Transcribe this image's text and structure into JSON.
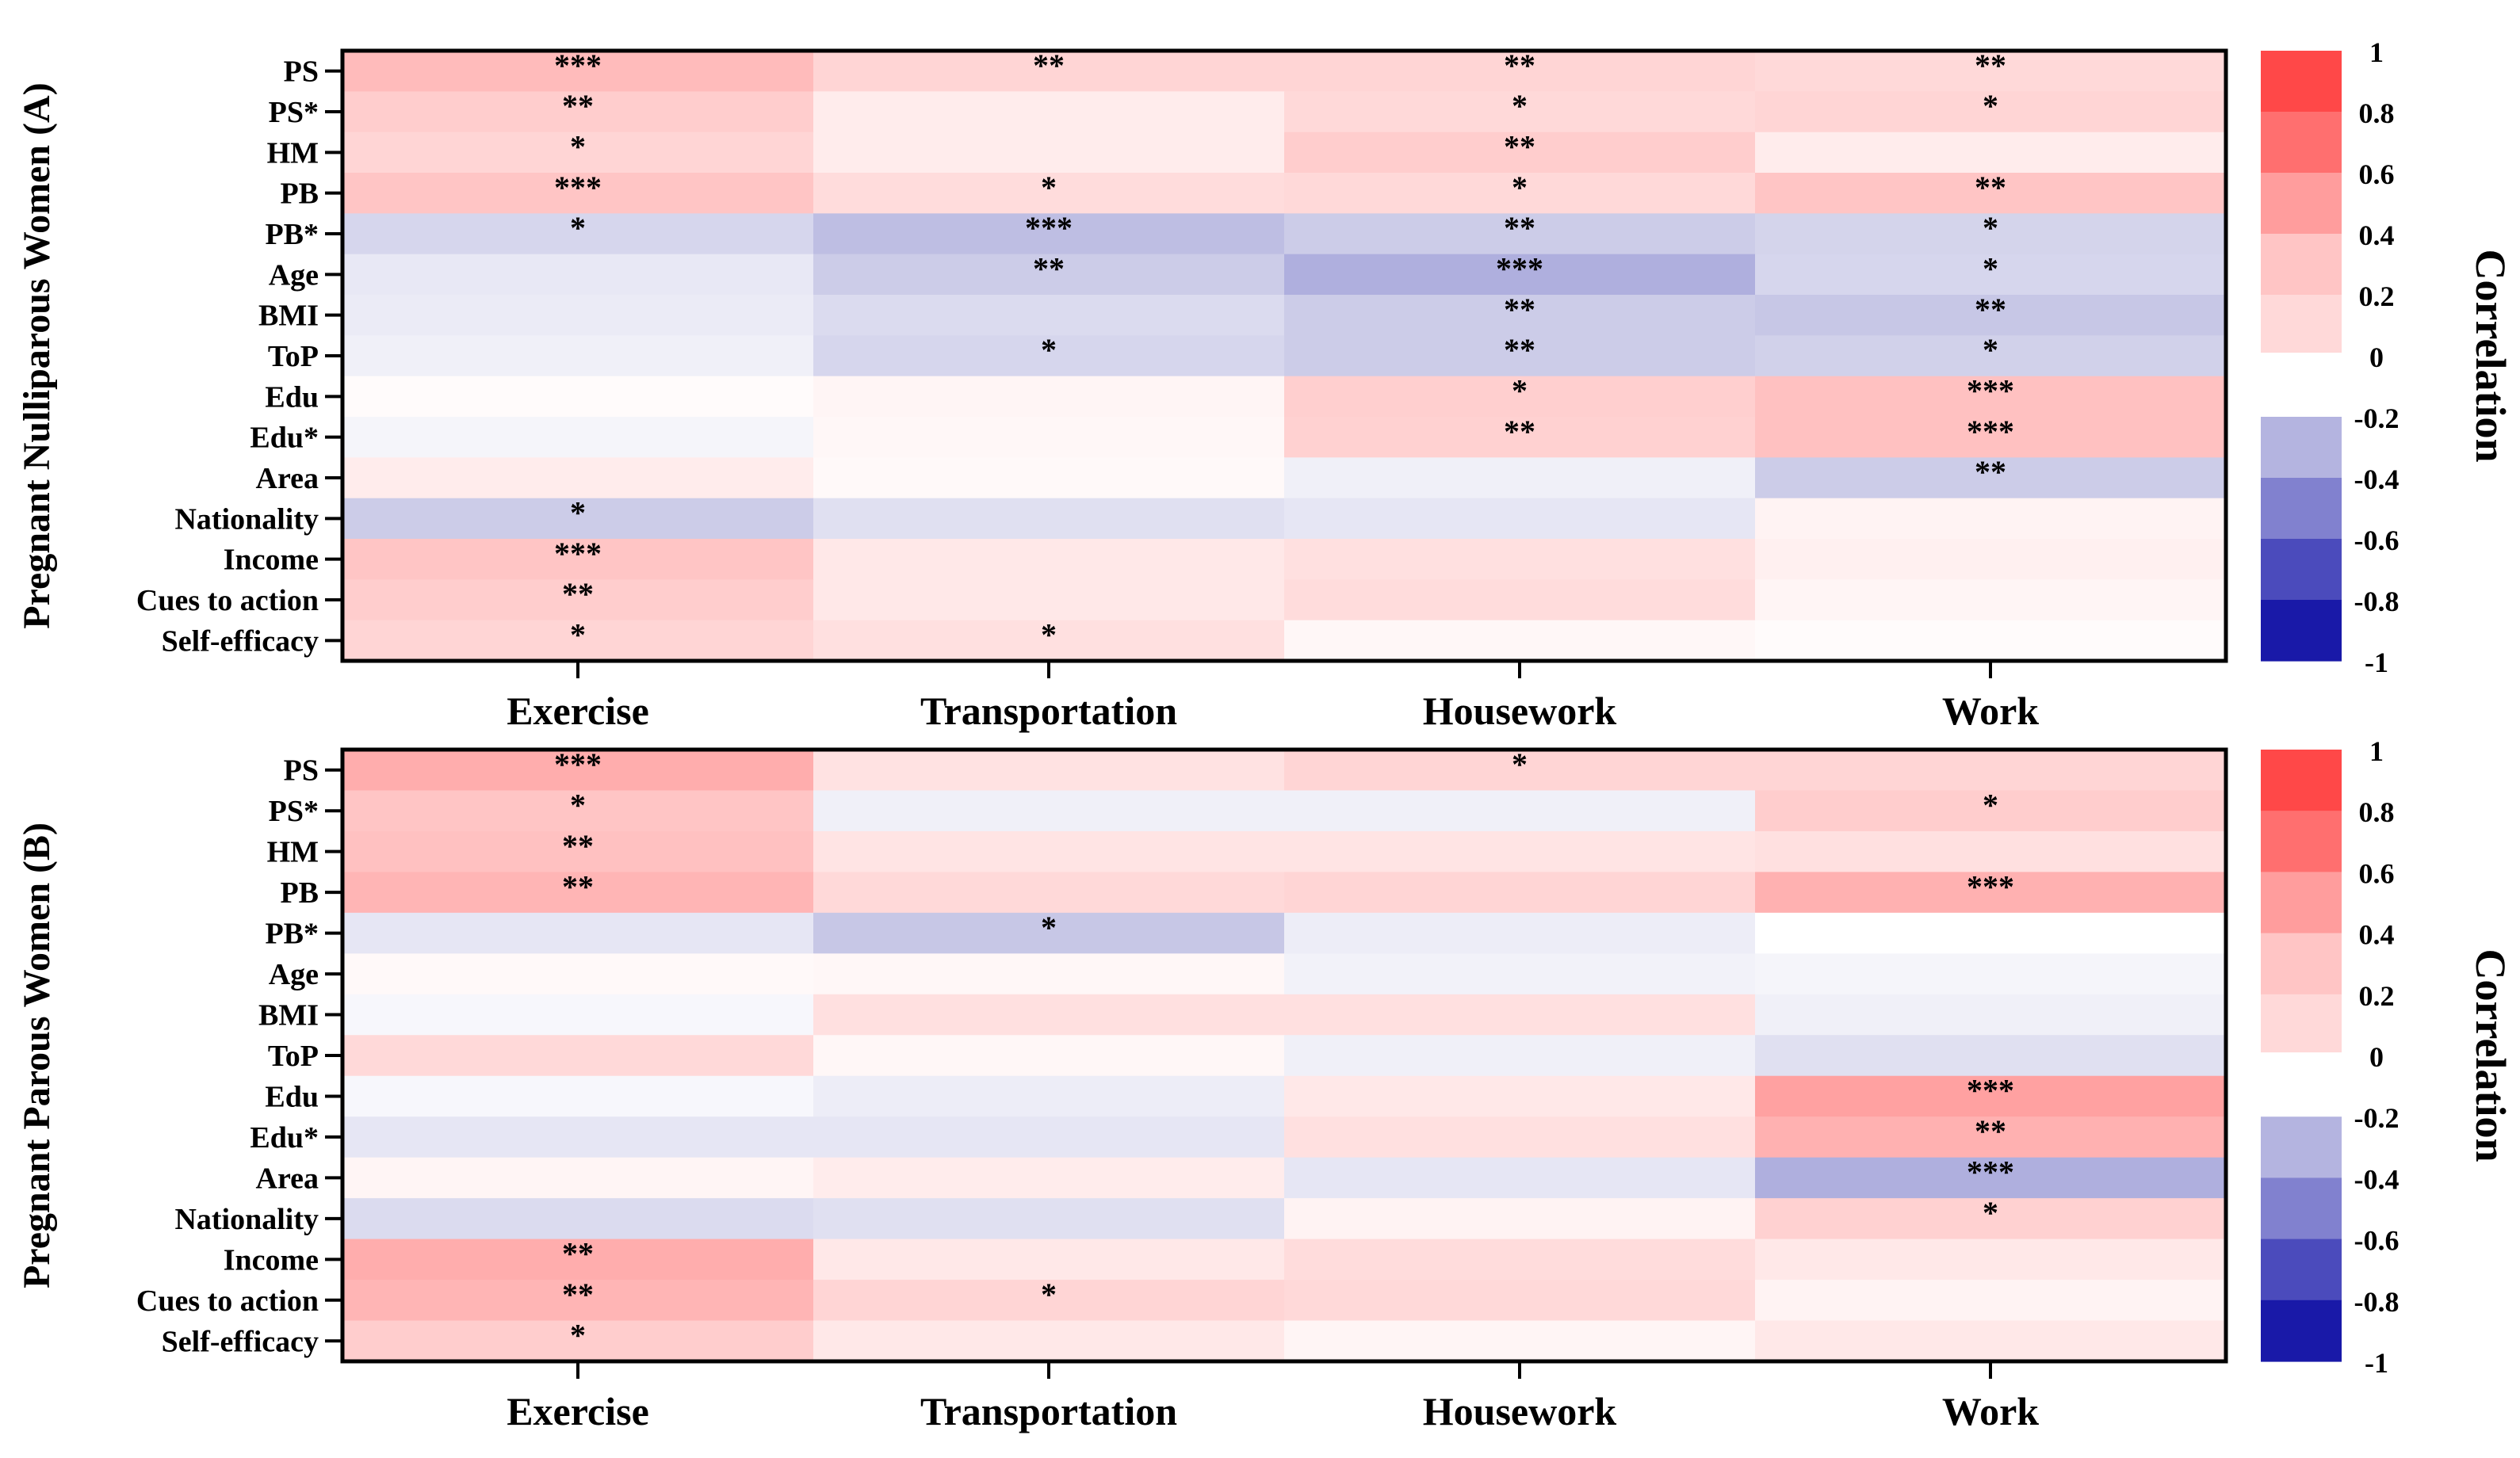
{
  "chart_data": [
    {
      "type": "heatmap",
      "title": "Pregnant Nulliparous Women (A)",
      "rows": [
        "PS",
        "PS*",
        "HM",
        "PB",
        "PB*",
        "Age",
        "BMI",
        "ToP",
        "Edu",
        "Edu*",
        "Area",
        "Nationality",
        "Income",
        "Cues to action",
        "Self-efficacy"
      ],
      "columns": [
        "Exercise",
        "Transportation",
        "Housework",
        "Work"
      ],
      "values": [
        [
          0.35,
          0.22,
          0.22,
          0.2
        ],
        [
          0.26,
          0.1,
          0.2,
          0.22
        ],
        [
          0.22,
          0.1,
          0.26,
          0.1
        ],
        [
          0.3,
          0.18,
          0.2,
          0.3
        ],
        [
          -0.16,
          -0.26,
          -0.2,
          -0.17
        ],
        [
          -0.09,
          -0.2,
          -0.32,
          -0.16
        ],
        [
          -0.08,
          -0.14,
          -0.2,
          -0.22
        ],
        [
          -0.06,
          -0.16,
          -0.2,
          -0.18
        ],
        [
          0.02,
          0.05,
          0.25,
          0.32
        ],
        [
          -0.04,
          0.04,
          0.24,
          0.32
        ],
        [
          0.1,
          0.03,
          -0.06,
          -0.2
        ],
        [
          -0.2,
          -0.12,
          -0.1,
          0.06
        ],
        [
          0.3,
          0.12,
          0.16,
          0.08
        ],
        [
          0.26,
          0.12,
          0.18,
          0.05
        ],
        [
          0.22,
          0.16,
          0.04,
          0.02
        ]
      ],
      "significance": [
        [
          "***",
          "**",
          "**",
          "**"
        ],
        [
          "**",
          "",
          "*",
          "*"
        ],
        [
          "*",
          "",
          "**",
          ""
        ],
        [
          "***",
          "*",
          "*",
          "**"
        ],
        [
          "*",
          "***",
          "**",
          "*"
        ],
        [
          "",
          "**",
          "***",
          "*"
        ],
        [
          "",
          "",
          "**",
          "**"
        ],
        [
          "",
          "*",
          "**",
          "*"
        ],
        [
          "",
          "",
          "*",
          "***"
        ],
        [
          "",
          "",
          "**",
          "***"
        ],
        [
          "",
          "",
          "",
          "**"
        ],
        [
          "*",
          "",
          "",
          ""
        ],
        [
          "***",
          "",
          "",
          ""
        ],
        [
          "**",
          "",
          "",
          ""
        ],
        [
          "*",
          "*",
          "",
          ""
        ]
      ],
      "colorbar_label": "Correlation",
      "colorbar_range": [
        -1,
        1
      ],
      "colorbar_ticks": [
        "1",
        "0.8",
        "0.6",
        "0.4",
        "0.2",
        "0",
        "-0.2",
        "-0.4",
        "-0.6",
        "-0.8",
        "-1"
      ]
    },
    {
      "type": "heatmap",
      "title": "Pregnant Parous Women (B)",
      "rows": [
        "PS",
        "PS*",
        "HM",
        "PB",
        "PB*",
        "Age",
        "BMI",
        "ToP",
        "Edu",
        "Edu*",
        "Area",
        "Nationality",
        "Income",
        "Cues to action",
        "Self-efficacy"
      ],
      "columns": [
        "Exercise",
        "Transportation",
        "Housework",
        "Work"
      ],
      "values": [
        [
          0.42,
          0.15,
          0.22,
          0.22
        ],
        [
          0.3,
          -0.06,
          -0.06,
          0.26
        ],
        [
          0.32,
          0.14,
          0.14,
          0.16
        ],
        [
          0.38,
          0.2,
          0.22,
          0.4
        ],
        [
          -0.1,
          -0.22,
          -0.07,
          0.0
        ],
        [
          0.03,
          0.04,
          -0.05,
          -0.04
        ],
        [
          -0.03,
          0.16,
          0.16,
          -0.06
        ],
        [
          0.2,
          0.04,
          -0.06,
          -0.12
        ],
        [
          -0.03,
          -0.07,
          0.12,
          0.48
        ],
        [
          -0.1,
          -0.1,
          0.16,
          0.4
        ],
        [
          0.05,
          0.1,
          -0.1,
          -0.32
        ],
        [
          -0.14,
          -0.12,
          0.06,
          0.24
        ],
        [
          0.42,
          0.12,
          0.18,
          0.12
        ],
        [
          0.38,
          0.22,
          0.2,
          0.06
        ],
        [
          0.26,
          0.12,
          0.05,
          0.12
        ]
      ],
      "significance": [
        [
          "***",
          "",
          "*",
          ""
        ],
        [
          "*",
          "",
          "",
          "*"
        ],
        [
          "**",
          "",
          "",
          ""
        ],
        [
          "**",
          "",
          "",
          "***"
        ],
        [
          "",
          "*",
          "",
          ""
        ],
        [
          "",
          "",
          "",
          ""
        ],
        [
          "",
          "",
          "",
          ""
        ],
        [
          "",
          "",
          "",
          ""
        ],
        [
          "",
          "",
          "",
          "***"
        ],
        [
          "",
          "",
          "",
          "**"
        ],
        [
          "",
          "",
          "",
          "***"
        ],
        [
          "",
          "",
          "",
          "*"
        ],
        [
          "**",
          "",
          "",
          ""
        ],
        [
          "**",
          "*",
          "",
          ""
        ],
        [
          "*",
          "",
          "",
          ""
        ]
      ],
      "colorbar_label": "Correlation",
      "colorbar_range": [
        -1,
        1
      ],
      "colorbar_ticks": [
        "1",
        "0.8",
        "0.6",
        "0.4",
        "0.2",
        "0",
        "-0.2",
        "-0.4",
        "-0.6",
        "-0.8",
        "-1"
      ]
    }
  ],
  "colors": {
    "positive_bins": [
      "#ffffff",
      "#ffcfcf",
      "#ff9d9d",
      "#ff6464",
      "#ff3535"
    ],
    "negative_bins": [
      "#ffffff",
      "#cccce8",
      "#9c9cd8",
      "#6666c6",
      "#3131b1",
      "#00009f"
    ],
    "frame": "#000000",
    "text": "#000000"
  }
}
